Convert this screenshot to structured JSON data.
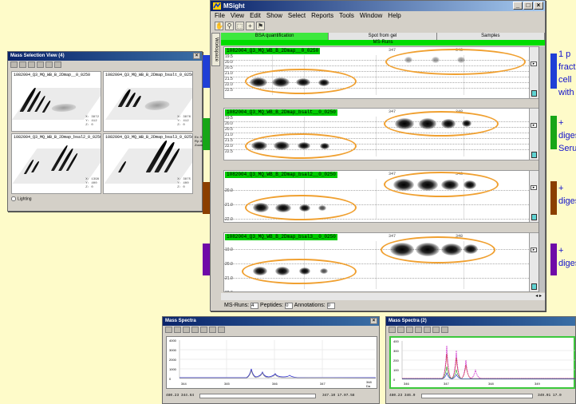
{
  "mass_selection": {
    "title": "Mass Selection View (4)",
    "panels": [
      {
        "label": "1082004_Q3_MQ_WB_B_2Dmap__0_0250",
        "vals": [
          "X: 3872",
          "Y: 412",
          "Z: 0"
        ]
      },
      {
        "label": "1082004_Q3_MQ_WB_B_2Dmap_bsalt_0_0250",
        "vals": [
          "X: 3876",
          "Y: 412",
          "Z: 0"
        ]
      },
      {
        "label": "1082004_Q3_MQ_WB_B_2Dmap_bsal2_0_0250",
        "vals": [
          "X: 1398",
          "Y: 400",
          "Z: 0"
        ]
      },
      {
        "label": "1082004_Q3_MQ_WB_B_2Dmap_bsal3_0_0250",
        "vals": [
          "X: 3875",
          "Y: 400",
          "Z: 0"
        ]
      }
    ],
    "lighting_label": "Lighting",
    "side_values": [
      "Ex: 5",
      "Ry: 8",
      "Zoom"
    ]
  },
  "msight": {
    "title": "MSight",
    "menu": [
      "File",
      "View",
      "Edit",
      "Show",
      "Select",
      "Reports",
      "Tools",
      "Window",
      "Help"
    ],
    "workspace_tab": "Workspace",
    "tabs": [
      "BSA quantification",
      "Spot from gel",
      "Samples"
    ],
    "msrun_header": "MS-Runs",
    "lanes": [
      {
        "label": "1082004_Q3_MQ_WB_B_2Dmap__0_0250",
        "ticks": [
          "19.5",
          "20.0",
          "20.5",
          "21.0",
          "21.5",
          "22.0",
          "22.5"
        ]
      },
      {
        "label": "1082004_Q3_MQ_WB_B_2Dmap_bsalt__0_0250",
        "ticks": [
          "19.5",
          "20.0",
          "20.5",
          "21.0",
          "21.5",
          "22.0",
          "22.5"
        ]
      },
      {
        "label": "1082004_Q3_MQ_WB_B_2Dmap_bsal2__0_0250",
        "ticks": [
          "20.0",
          "21.0",
          "22.0"
        ]
      },
      {
        "label": "1082004_Q3_MQ_WB_B_2Dmap_bsal3__0_0250",
        "ticks": [
          "19.0",
          "20.0",
          "21.0",
          "22.0"
        ]
      }
    ],
    "markers": [
      "347",
      "348"
    ],
    "status": {
      "ms_runs_label": "MS-Runs:",
      "ms_runs": "4",
      "peptides_label": "Peptides:",
      "peptides": "0",
      "annotations_label": "Annotations:",
      "annotations": "0"
    }
  },
  "captions": [
    {
      "lines": [
        "1 p",
        "fract",
        "cell",
        "with"
      ]
    },
    {
      "lines": [
        "+",
        "diges",
        "Serum"
      ]
    },
    {
      "lines": [
        "+",
        "diges"
      ]
    },
    {
      "lines": [
        "+",
        "diges"
      ]
    }
  ],
  "colors": {
    "blue": "#1f3fd6",
    "green": "#17a617",
    "brown": "#8b3f00",
    "purple": "#6f0aa8",
    "orange": "#f0a030",
    "page": "#fefbc9"
  },
  "spectra_left": {
    "title": "Mass Spectra",
    "y_ticks": [
      "4000",
      "3000",
      "2000",
      "1000",
      "0"
    ],
    "x_ticks": [
      "344",
      "345",
      "346",
      "347",
      "348"
    ],
    "x_unit": "Da",
    "footer_left": "480.23",
    "footer_left2": "344.64",
    "footer_right": "347.10",
    "footer_right2": "17.07.58"
  },
  "spectra_right": {
    "title": "Mass Spectra (2)",
    "y_ticks": [
      "400",
      "300",
      "200",
      "100",
      "0"
    ],
    "x_ticks": [
      "346",
      "347",
      "348",
      "349"
    ],
    "footer_left": "480.23",
    "footer_left2": "346.0",
    "footer_right": "349.01",
    "footer_right2": "17.0"
  }
}
